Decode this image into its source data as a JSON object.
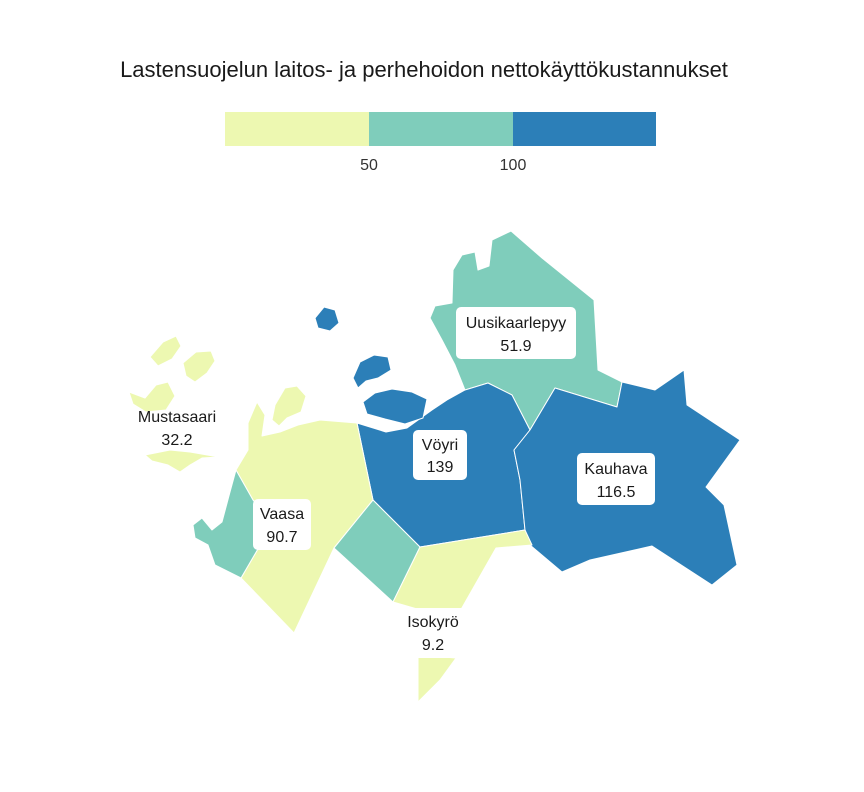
{
  "title": "Lastensuojelun laitos- ja perhehoidon nettokäyttökustannukset",
  "legend": {
    "ticks": [
      "50",
      "100"
    ],
    "colors": [
      "#edf8b1",
      "#7fcdbb",
      "#2c7fb8"
    ]
  },
  "municipalities": [
    {
      "name": "Uusikaarlepyy",
      "value": "51.9",
      "color": "#7fcdbb"
    },
    {
      "name": "Mustasaari",
      "value": "32.2",
      "color": "#edf8b1"
    },
    {
      "name": "Vöyri",
      "value": "139",
      "color": "#2c7fb8"
    },
    {
      "name": "Kauhava",
      "value": "116.5",
      "color": "#2c7fb8"
    },
    {
      "name": "Vaasa",
      "value": "90.7",
      "color": "#7fcdbb"
    },
    {
      "name": "Isokyrö",
      "value": "9.2",
      "color": "#edf8b1"
    }
  ]
}
